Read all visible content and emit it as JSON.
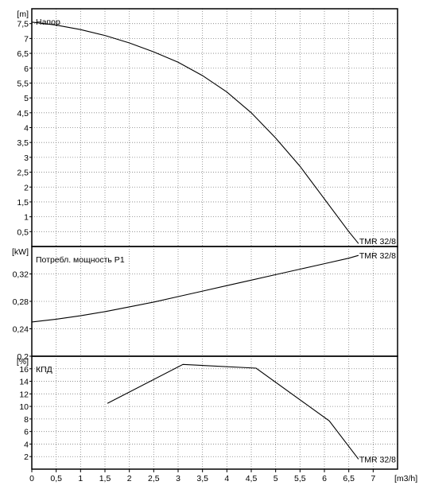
{
  "chart_data": [
    {
      "type": "line",
      "title": "Напор",
      "ylabel": "[m]",
      "ylim": [
        0,
        8
      ],
      "yticks": [
        "0,5",
        "1",
        "1,5",
        "2",
        "2,5",
        "3",
        "3,5",
        "4",
        "4,5",
        "5",
        "5,5",
        "6",
        "6,5",
        "7",
        "7,5"
      ],
      "ytick_values": [
        0.5,
        1,
        1.5,
        2,
        2.5,
        3,
        3.5,
        4,
        4.5,
        5,
        5.5,
        6,
        6.5,
        7,
        7.5
      ],
      "series": [
        {
          "name": "TMR 32/8",
          "x": [
            0,
            0.5,
            1,
            1.5,
            2,
            2.5,
            3,
            3.5,
            4,
            4.5,
            5,
            5.5,
            6,
            6.5,
            6.7
          ],
          "y": [
            7.55,
            7.45,
            7.3,
            7.1,
            6.85,
            6.55,
            6.2,
            5.75,
            5.2,
            4.5,
            3.65,
            2.7,
            1.6,
            0.5,
            0.1
          ]
        }
      ]
    },
    {
      "type": "line",
      "title": "Потребл. мощность P1",
      "ylabel": "[kW]",
      "ylim": [
        0.2,
        0.36
      ],
      "yticks": [
        "0,2",
        "0,24",
        "0,28",
        "0,32"
      ],
      "ytick_values": [
        0.2,
        0.24,
        0.28,
        0.32
      ],
      "series": [
        {
          "name": "TMR 32/8",
          "x": [
            0,
            0.5,
            1,
            1.5,
            2,
            2.5,
            3,
            3.5,
            4,
            4.5,
            5,
            5.5,
            6,
            6.5,
            6.7
          ],
          "y": [
            0.25,
            0.254,
            0.259,
            0.265,
            0.272,
            0.279,
            0.287,
            0.295,
            0.303,
            0.311,
            0.319,
            0.327,
            0.335,
            0.343,
            0.347
          ]
        }
      ]
    },
    {
      "type": "line",
      "title": "КПД",
      "ylabel": "[%]",
      "ylim": [
        0,
        18
      ],
      "yticks": [
        "2",
        "4",
        "6",
        "8",
        "10",
        "12",
        "14",
        "16"
      ],
      "ytick_values": [
        2,
        4,
        6,
        8,
        10,
        12,
        14,
        16
      ],
      "xlabel": "[m3/h]",
      "xlim": [
        0,
        7.5
      ],
      "xticks": [
        "0",
        "0,5",
        "1",
        "1,5",
        "2",
        "2,5",
        "3",
        "3,5",
        "4",
        "4,5",
        "5",
        "5,5",
        "6",
        "6,5",
        "7"
      ],
      "xtick_values": [
        0,
        0.5,
        1,
        1.5,
        2,
        2.5,
        3,
        3.5,
        4,
        4.5,
        5,
        5.5,
        6,
        6.5,
        7
      ],
      "series": [
        {
          "name": "TMR 32/8",
          "x": [
            1.55,
            3.1,
            4.6,
            6.1,
            6.7
          ],
          "y": [
            10.5,
            16.7,
            16.1,
            7.7,
            1.6
          ]
        }
      ]
    }
  ]
}
